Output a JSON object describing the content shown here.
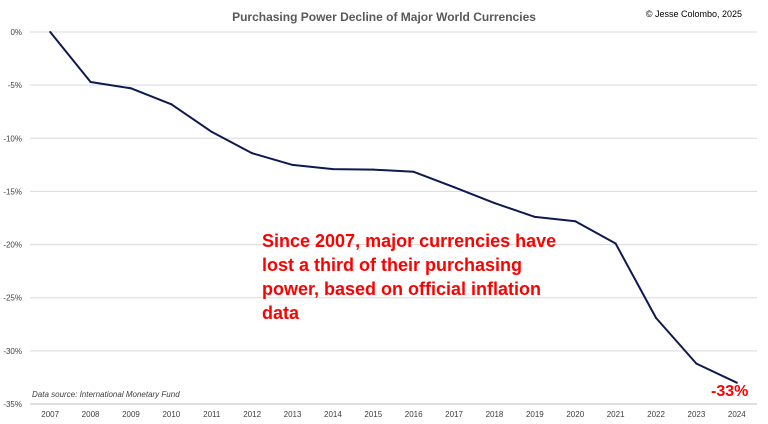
{
  "chart_data": {
    "type": "line",
    "title": "Purchasing Power Decline of Major World Currencies",
    "copyright": "© Jesse Colombo, 2025",
    "source": "Data source: International Monetary Fund",
    "annotation": "Since 2007, major currencies have lost a third of their purchasing power, based on official inflation data",
    "end_label": "-33%",
    "x": [
      "2007",
      "2008",
      "2009",
      "2010",
      "2011",
      "2012",
      "2013",
      "2014",
      "2015",
      "2016",
      "2017",
      "2018",
      "2019",
      "2020",
      "2021",
      "2022",
      "2023",
      "2024"
    ],
    "series": [
      {
        "values": [
          0,
          -4.7,
          -5.3,
          -6.8,
          -9.4,
          -11.4,
          -12.5,
          -12.9,
          -12.95,
          -13.15,
          -14.6,
          -16.1,
          -17.4,
          -17.8,
          -19.9,
          -26.9,
          -31.2,
          -33.0
        ]
      }
    ],
    "ylim": [
      -35,
      0
    ],
    "yticks": [
      0,
      -5,
      -10,
      -15,
      -20,
      -25,
      -30,
      -35
    ],
    "ytick_labels": [
      "0%",
      "-5%",
      "-10%",
      "-15%",
      "-20%",
      "-25%",
      "-30%",
      "-35%"
    ],
    "grid": true,
    "line_color": "#0d1a4f",
    "accent_color": "#ff0000"
  }
}
